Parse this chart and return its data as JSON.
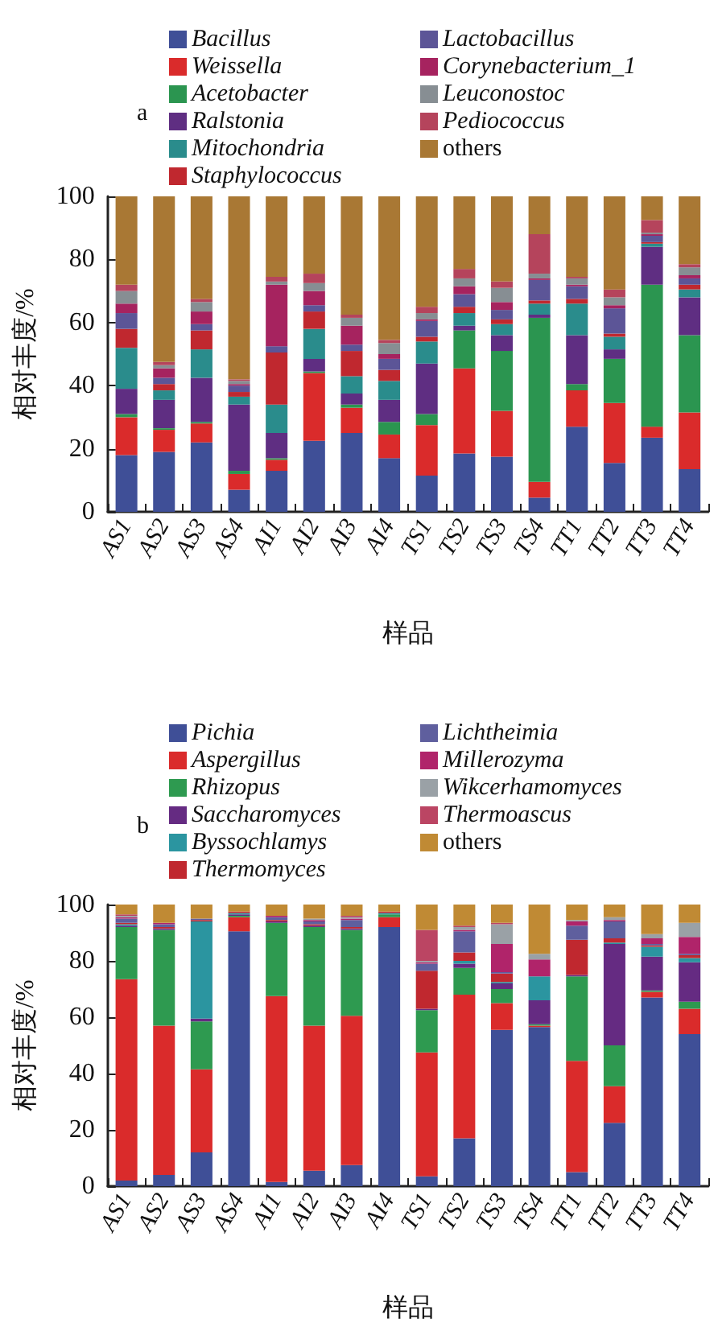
{
  "chart_data": [
    {
      "type": "bar",
      "title": "a",
      "stacked": true,
      "legend": "top",
      "grid": false,
      "xlabel": "样品",
      "ylabel": "相对丰度/%",
      "ylim": [
        0,
        100
      ],
      "yticks": [
        0,
        20,
        40,
        60,
        80,
        100
      ],
      "categories": [
        "AS1",
        "AS2",
        "AS3",
        "AS4",
        "AI1",
        "AI2",
        "AI3",
        "AI4",
        "TS1",
        "TS2",
        "TS3",
        "TS4",
        "TT1",
        "TT2",
        "TT3",
        "TT4"
      ],
      "series": [
        {
          "name": "Bacillus",
          "color": "#3f4f97",
          "values": [
            18,
            19,
            22,
            7,
            13,
            22.5,
            25,
            17,
            11.5,
            18.5,
            17.5,
            4.5,
            27,
            15.5,
            23.5,
            13.5
          ]
        },
        {
          "name": "Weissella",
          "color": "#da2b2b",
          "values": [
            12,
            7,
            6,
            5,
            3.5,
            21.5,
            8,
            7.5,
            16,
            27,
            14.5,
            5,
            11.5,
            19,
            3.5,
            18
          ]
        },
        {
          "name": "Acetobacter",
          "color": "#2b9550",
          "values": [
            1,
            0.5,
            0.5,
            1,
            0.5,
            0.5,
            1,
            4,
            3.5,
            12,
            19,
            52,
            2,
            14,
            45,
            24.5
          ]
        },
        {
          "name": "Ralstonia",
          "color": "#5f2e82",
          "values": [
            8,
            9,
            14,
            21,
            8,
            4,
            3.5,
            7,
            16,
            1.5,
            5,
            1,
            15.5,
            3,
            12,
            12
          ]
        },
        {
          "name": "Mitochondria",
          "color": "#2a8c8c",
          "values": [
            13,
            3,
            9,
            2.5,
            9,
            9.5,
            5.5,
            6,
            7,
            4,
            3.5,
            3.5,
            10,
            4,
            1,
            2.5
          ]
        },
        {
          "name": "Staphylococcus",
          "color": "#c0282f",
          "values": [
            6,
            2,
            6,
            1.5,
            16.5,
            5.5,
            8,
            3.5,
            1.5,
            2,
            1.5,
            1,
            1.5,
            1,
            0.5,
            1.5
          ]
        },
        {
          "name": "Lactobacillus",
          "color": "#5c5597",
          "values": [
            5,
            2,
            2,
            2,
            2,
            2,
            2,
            3.5,
            5,
            4,
            3,
            6.5,
            4,
            8,
            2,
            2
          ]
        },
        {
          "name": "Corynebacterium_1",
          "color": "#a6235f",
          "values": [
            3,
            3,
            4,
            0.5,
            19.5,
            4.5,
            6,
            1.5,
            0.5,
            2.5,
            2.5,
            0.5,
            0.5,
            1,
            0.5,
            1
          ]
        },
        {
          "name": "Leuconostoc",
          "color": "#878e93",
          "values": [
            4,
            1,
            3,
            1,
            1,
            2.5,
            2.5,
            3.5,
            2,
            2.5,
            4.5,
            1.5,
            2,
            2.5,
            0.5,
            2.5
          ]
        },
        {
          "name": "Pediococcus",
          "color": "#b5445c",
          "values": [
            2,
            1,
            1,
            0.5,
            1.5,
            3,
            1,
            1,
            2,
            3,
            2,
            12.5,
            0.5,
            2.5,
            4,
            1
          ]
        },
        {
          "name": "others",
          "color": "#a97834",
          "values": [
            28,
            52.5,
            32.5,
            58,
            25.5,
            24.5,
            37.5,
            45.5,
            35,
            23,
            27,
            12,
            25.5,
            29.5,
            7.5,
            21.5
          ]
        }
      ]
    },
    {
      "type": "bar",
      "title": "b",
      "stacked": true,
      "legend": "top",
      "grid": false,
      "xlabel": "样品",
      "ylabel": "相对丰度/%",
      "ylim": [
        0,
        100
      ],
      "yticks": [
        0,
        20,
        40,
        60,
        80,
        100
      ],
      "categories": [
        "AS1",
        "AS2",
        "AS3",
        "AS4",
        "AI1",
        "AI2",
        "AI3",
        "AI4",
        "TS1",
        "TS2",
        "TS3",
        "TS4",
        "TT1",
        "TT2",
        "TT3",
        "TT4"
      ],
      "series": [
        {
          "name": "Pichia",
          "color": "#3f4f97",
          "values": [
            2,
            4,
            12,
            90.5,
            1.5,
            5.5,
            7.5,
            92,
            3.5,
            17,
            55.5,
            56.5,
            5,
            22.5,
            67,
            54
          ]
        },
        {
          "name": "Aspergillus",
          "color": "#da2b2b",
          "values": [
            71.5,
            53,
            29.5,
            5,
            66,
            51.5,
            53,
            3.5,
            44,
            51,
            9.5,
            0.5,
            39.5,
            13,
            2,
            9
          ]
        },
        {
          "name": "Rhizopus",
          "color": "#2e9a50",
          "values": [
            18.5,
            34,
            17,
            0.5,
            26,
            35,
            30.5,
            1,
            15,
            9.5,
            5,
            0.5,
            30,
            14.5,
            0.5,
            2.5
          ]
        },
        {
          "name": "Saccharomyces",
          "color": "#652b82",
          "values": [
            0.5,
            0.5,
            1,
            0.5,
            0.5,
            0.5,
            0.5,
            0,
            0.5,
            1.5,
            2,
            8.5,
            0.5,
            36,
            12,
            14
          ]
        },
        {
          "name": "Byssochlamys",
          "color": "#2b95a0",
          "values": [
            0.5,
            0,
            34.5,
            0.5,
            0,
            0,
            0,
            0.5,
            0,
            1,
            0.5,
            8.5,
            0,
            0.5,
            3.5,
            1.5
          ]
        },
        {
          "name": "Thermomyces",
          "color": "#c0282f",
          "values": [
            0.5,
            0.5,
            0.5,
            0.5,
            0.5,
            0.5,
            0.5,
            0.5,
            13.5,
            3,
            3,
            0,
            12.5,
            1.5,
            0.5,
            1
          ]
        },
        {
          "name": "Lichtheimia",
          "color": "#5f5f9e",
          "values": [
            1.5,
            1,
            0.5,
            0,
            1,
            1,
            2.5,
            0,
            2.5,
            7.5,
            0.5,
            0,
            5,
            6,
            0.5,
            0.5
          ]
        },
        {
          "name": "Millerozyma",
          "color": "#b0246a",
          "values": [
            0.5,
            0.5,
            0,
            0,
            0.5,
            0.5,
            0.5,
            0,
            0.5,
            0.5,
            10,
            6,
            1.5,
            0.5,
            2,
            6
          ]
        },
        {
          "name": "Wikcerhamomyces",
          "color": "#9aa1a6",
          "values": [
            0.5,
            0,
            0,
            0,
            0,
            0.5,
            0.5,
            0,
            0.5,
            1,
            7,
            2,
            0.5,
            1,
            1.5,
            5
          ]
        },
        {
          "name": "Thermoascus",
          "color": "#bb4563",
          "values": [
            0.5,
            0,
            0,
            0,
            0,
            0,
            0.5,
            0,
            11,
            0.5,
            0.5,
            0,
            0,
            0,
            0,
            0
          ]
        },
        {
          "name": "others",
          "color": "#c08a34",
          "values": [
            3.5,
            6.5,
            5,
            2.5,
            4,
            5,
            4,
            2.5,
            9,
            7.5,
            6.5,
            17.5,
            5.5,
            4.5,
            10.5,
            6.5
          ]
        }
      ]
    }
  ]
}
